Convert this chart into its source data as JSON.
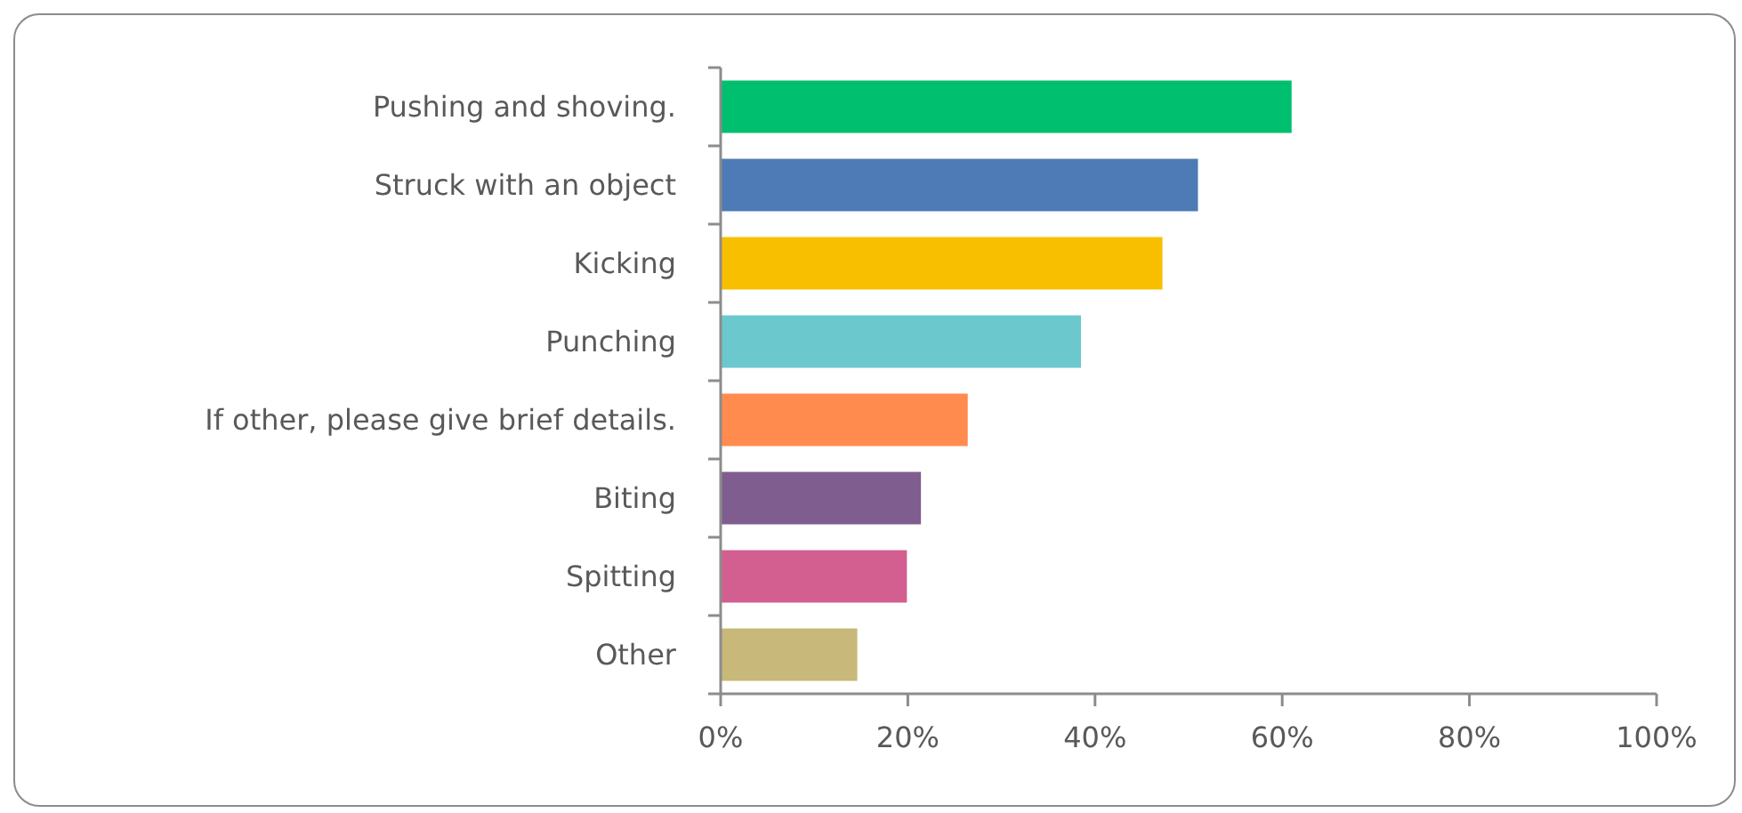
{
  "chart_data": {
    "type": "bar",
    "orientation": "horizontal",
    "categories": [
      "Pushing and shoving.",
      "Struck with an object",
      "Kicking",
      "Punching",
      "If other, please give brief details.",
      "Biting",
      "Spitting",
      "Other"
    ],
    "values": [
      61,
      51,
      47.2,
      38.5,
      26.4,
      21.4,
      19.9,
      14.6
    ],
    "colors": [
      "#00bf6f",
      "#4e7ab5",
      "#f8be00",
      "#6bc8cd",
      "#ff8b4f",
      "#7f5e8f",
      "#d25f90",
      "#c8b879"
    ],
    "xlim": [
      0,
      100
    ],
    "xticks": [
      {
        "value": 0,
        "label": "0%"
      },
      {
        "value": 20,
        "label": "20%"
      },
      {
        "value": 40,
        "label": "40%"
      },
      {
        "value": 60,
        "label": "60%"
      },
      {
        "value": 80,
        "label": "80%"
      },
      {
        "value": 100,
        "label": "100%"
      }
    ],
    "grid": false
  }
}
